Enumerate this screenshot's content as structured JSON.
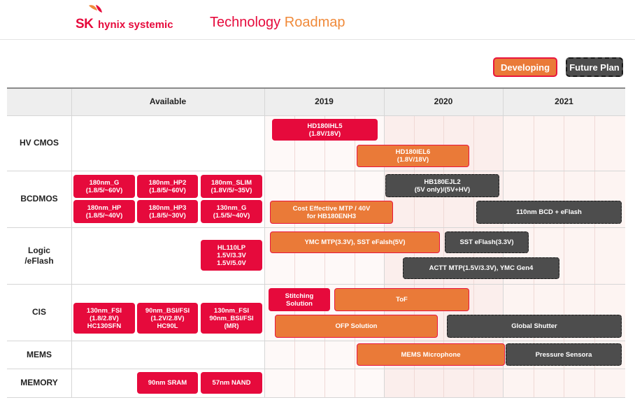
{
  "header": {
    "logo_sk": "SK",
    "logo_rest": "hynix systemic",
    "title_a": "Technology",
    "title_b": "Roadmap"
  },
  "legend": {
    "developing": "Developing",
    "future": "Future Plan"
  },
  "colors": {
    "red": "#e60a3c",
    "developing": "#ea7a38",
    "future": "#4d4d4d",
    "header_bg": "#eeeeee"
  },
  "columns": {
    "available": "Available",
    "y2019": "2019",
    "y2020": "2020",
    "y2021": "2021"
  },
  "rows": {
    "hv": "HV CMOS",
    "bcd": "BCDMOS",
    "logic": "Logic\n/eFlash",
    "cis": "CIS",
    "mems": "MEMS",
    "memory": "MEMORY"
  },
  "available": {
    "bcd_180g": "180nm_G\n(1.8/5/~60V)",
    "bcd_180hp2": "180nm_HP2\n(1.8/5/~60V)",
    "bcd_180slim": "180nm_SLIM\n(1.8V/5/~35V)",
    "bcd_180hp": "180nm_HP\n(1.8/5/~40V)",
    "bcd_180hp3": "180nm_HP3\n(1.8/5/~30V)",
    "bcd_130g": "130nm_G\n(1.5/5/~40V)",
    "logic_hl110lp": "HL110LP\n1.5V/3.3V\n1.5V/5.0V",
    "cis_130fsi": "130nm_FSI\n(1.8/2.8V)\nHC130SFN",
    "cis_90bsi": "90nm_BSI/FSI\n(1.2V/2.8V)\nHC90L",
    "cis_130mr": "130nm_FSI\n90nm_BSI/FSI\n(MR)",
    "mem_sram": "90nm SRAM",
    "mem_nand": "57nm NAND"
  },
  "roadmap": {
    "hd180ihl5": "HD180IHL5\n(1.8V/18V)",
    "hd180iel6": "HD180IEL6\n(1.8V/18V)",
    "hb180ejl2": "HB180EJL2\n(5V only)/(5V+HV)",
    "cost_mtp": "Cost Effective MTP / 40V\nfor HB180ENH3",
    "bcd110": "110nm BCD + eFlash",
    "ymc_mtp": "YMC MTP(3.3V), SST eFalsh(5V)",
    "sst_eflash": "SST eFlash(3.3V)",
    "actt_mtp": "ACTT MTP(1.5V/3.3V), YMC Gen4",
    "stitching": "Stitching\nSolution",
    "tof": "ToF",
    "ofp": "OFP Solution",
    "global_shutter": "Global Shutter",
    "mems_mic": "MEMS Microphone",
    "pressure": "Pressure Sensora"
  }
}
